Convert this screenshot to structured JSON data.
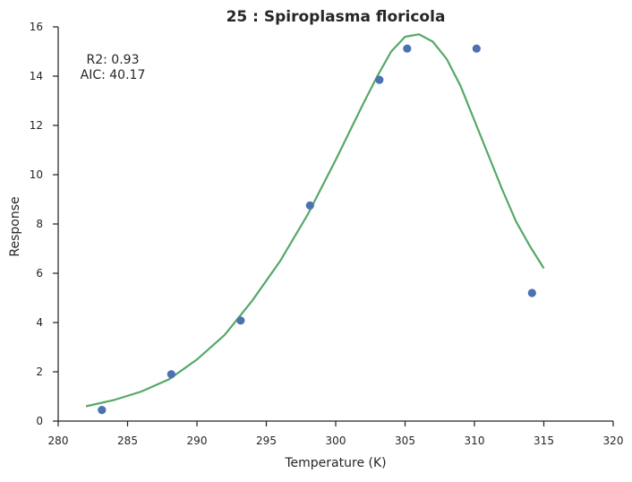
{
  "chart_data": {
    "type": "scatter",
    "title": "25 : Spiroplasma floricola",
    "xlabel": "Temperature (K)",
    "ylabel": "Response",
    "xlim": [
      280,
      320
    ],
    "ylim": [
      0,
      16
    ],
    "xticks": [
      280,
      285,
      290,
      295,
      300,
      305,
      310,
      315,
      320
    ],
    "yticks": [
      0,
      2,
      4,
      6,
      8,
      10,
      12,
      14,
      16
    ],
    "grid": false,
    "annotations": [
      "R2: 0.93",
      "AIC: 40.17"
    ],
    "colors": {
      "points": "#4c72b0",
      "fit": "#55a868",
      "axis": "#262626"
    },
    "series": [
      {
        "kind": "points",
        "x": [
          283.15,
          288.15,
          293.15,
          298.15,
          303.15,
          305.15,
          310.15,
          314.15
        ],
        "y": [
          0.45,
          1.9,
          4.08,
          8.75,
          13.85,
          15.12,
          15.12,
          5.2
        ]
      },
      {
        "kind": "fit-line",
        "x": [
          282.0,
          284.0,
          286.0,
          288.0,
          290.0,
          292.0,
          294.0,
          296.0,
          298.0,
          300.0,
          302.0,
          303.0,
          304.0,
          305.0,
          306.0,
          307.0,
          308.0,
          309.0,
          310.0,
          311.0,
          312.0,
          313.0,
          314.0,
          315.0
        ],
        "y": [
          0.6,
          0.85,
          1.2,
          1.7,
          2.5,
          3.5,
          4.9,
          6.5,
          8.4,
          10.6,
          12.9,
          14.0,
          15.0,
          15.6,
          15.7,
          15.4,
          14.7,
          13.6,
          12.2,
          10.8,
          9.4,
          8.1,
          7.1,
          6.2
        ]
      }
    ]
  }
}
